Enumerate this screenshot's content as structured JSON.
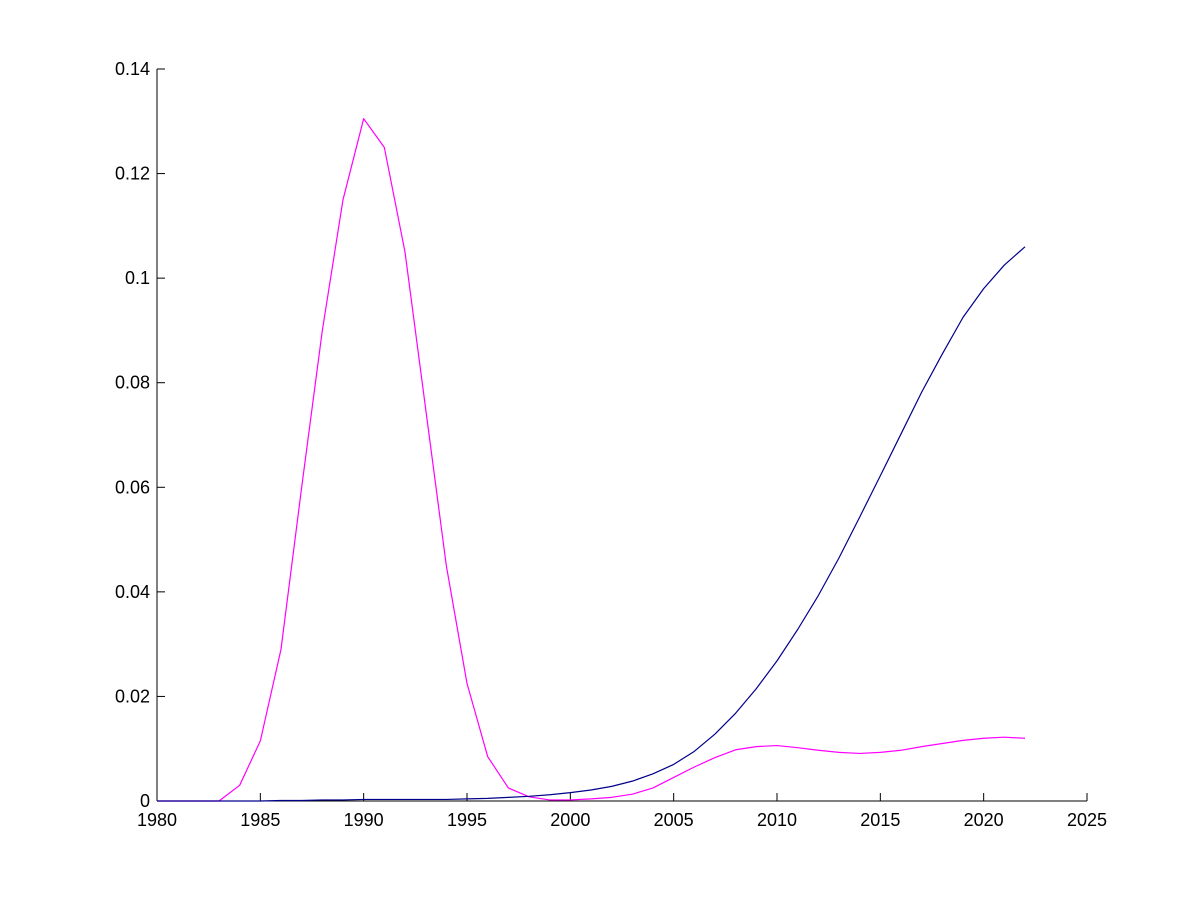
{
  "colors": {
    "background": "#ffffff",
    "axis": "#000000",
    "series_magenta": "#ff00ff",
    "series_blue": "#00008b"
  },
  "chart_data": {
    "type": "line",
    "title": "",
    "xlabel": "",
    "ylabel": "",
    "xlim": [
      1980,
      2025
    ],
    "ylim": [
      0,
      0.14
    ],
    "grid": false,
    "legend": "none",
    "x_ticks": [
      "1980",
      "1985",
      "1990",
      "1995",
      "2000",
      "2005",
      "2010",
      "2015",
      "2020",
      "2025"
    ],
    "y_ticks": [
      "0",
      "0.02",
      "0.04",
      "0.06",
      "0.08",
      "0.1",
      "0.12",
      "0.14"
    ],
    "x_tick_values": [
      1980,
      1985,
      1990,
      1995,
      2000,
      2005,
      2010,
      2015,
      2020,
      2025
    ],
    "y_tick_values": [
      0,
      0.02,
      0.04,
      0.06,
      0.08,
      0.1,
      0.12,
      0.14
    ],
    "x": [
      1980,
      1981,
      1982,
      1983,
      1984,
      1985,
      1986,
      1987,
      1988,
      1989,
      1990,
      1991,
      1992,
      1993,
      1994,
      1995,
      1996,
      1997,
      1998,
      1999,
      2000,
      2001,
      2002,
      2003,
      2004,
      2005,
      2006,
      2007,
      2008,
      2009,
      2010,
      2011,
      2012,
      2013,
      2014,
      2015,
      2016,
      2017,
      2018,
      2019,
      2020,
      2021,
      2022
    ],
    "series": [
      {
        "color": "#ff00ff",
        "values": [
          0,
          0,
          0,
          0,
          0.003,
          0.0115,
          0.029,
          0.06,
          0.09,
          0.115,
          0.1305,
          0.125,
          0.105,
          0.075,
          0.045,
          0.0225,
          0.0085,
          0.0025,
          0.0008,
          0.0002,
          0.0002,
          0.0004,
          0.0007,
          0.0013,
          0.0025,
          0.0045,
          0.0065,
          0.0083,
          0.0098,
          0.0104,
          0.0106,
          0.0102,
          0.0097,
          0.0093,
          0.0091,
          0.0093,
          0.0097,
          0.0104,
          0.011,
          0.0116,
          0.012,
          0.0122,
          0.012
        ]
      },
      {
        "color": "#00008b",
        "values": [
          0,
          0,
          0,
          0,
          0,
          0,
          0.0001,
          0.0001,
          0.0002,
          0.0002,
          0.0003,
          0.0003,
          0.0003,
          0.0003,
          0.0003,
          0.0004,
          0.0005,
          0.0007,
          0.0009,
          0.0012,
          0.0016,
          0.0021,
          0.0028,
          0.0038,
          0.0052,
          0.007,
          0.0095,
          0.0128,
          0.0168,
          0.0215,
          0.0268,
          0.0328,
          0.0393,
          0.0465,
          0.0543,
          0.0622,
          0.0702,
          0.0782,
          0.0855,
          0.0925,
          0.098,
          0.1025,
          0.106
        ]
      }
    ]
  }
}
